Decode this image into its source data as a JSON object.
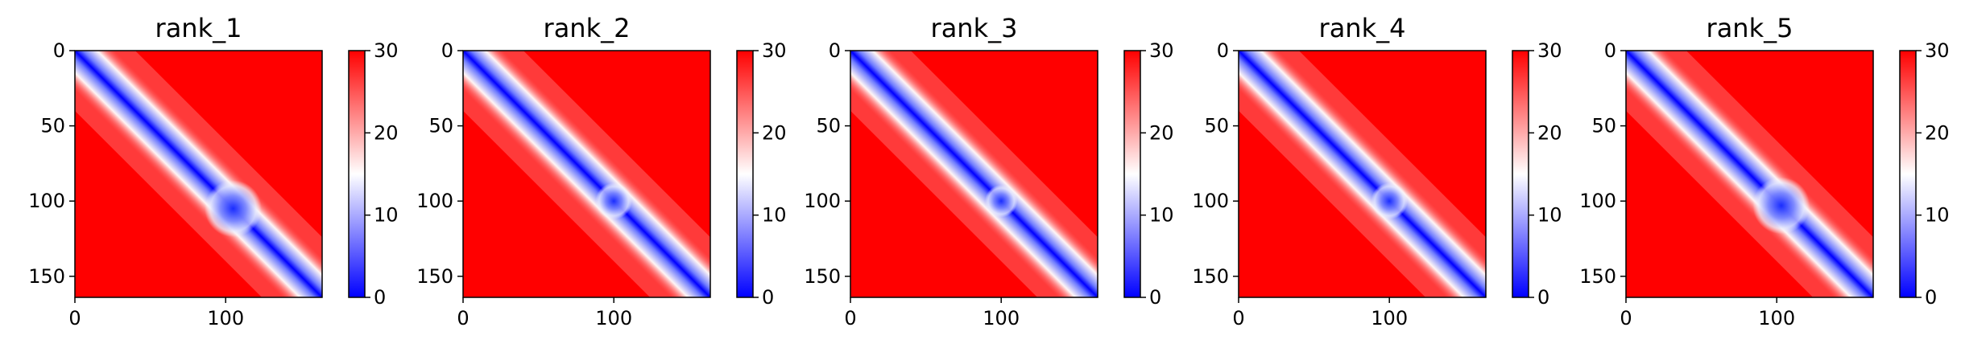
{
  "chart_data": [
    {
      "type": "heatmap",
      "title": "rank_1",
      "x_ticks": [
        0,
        100
      ],
      "y_ticks": [
        0,
        50,
        100,
        150
      ],
      "xlim": [
        0,
        164
      ],
      "ylim": [
        164,
        0
      ],
      "colorbar": {
        "ticks": [
          0,
          10,
          20,
          30
        ],
        "range": [
          0,
          30
        ],
        "colormap": "bwr",
        "colors": [
          "#0000ff",
          "#ffffff",
          "#ff0000"
        ]
      },
      "blob": {
        "center": 105,
        "radius": 14
      }
    },
    {
      "type": "heatmap",
      "title": "rank_2",
      "x_ticks": [
        0,
        100
      ],
      "y_ticks": [
        0,
        50,
        100,
        150
      ],
      "xlim": [
        0,
        164
      ],
      "ylim": [
        164,
        0
      ],
      "colorbar": {
        "ticks": [
          0,
          10,
          20,
          30
        ],
        "range": [
          0,
          30
        ],
        "colormap": "bwr",
        "colors": [
          "#0000ff",
          "#ffffff",
          "#ff0000"
        ]
      },
      "blob": {
        "center": 100,
        "radius": 9
      }
    },
    {
      "type": "heatmap",
      "title": "rank_3",
      "x_ticks": [
        0,
        100
      ],
      "y_ticks": [
        0,
        50,
        100,
        150
      ],
      "xlim": [
        0,
        164
      ],
      "ylim": [
        164,
        0
      ],
      "colorbar": {
        "ticks": [
          0,
          10,
          20,
          30
        ],
        "range": [
          0,
          30
        ],
        "colormap": "bwr",
        "colors": [
          "#0000ff",
          "#ffffff",
          "#ff0000"
        ]
      },
      "blob": {
        "center": 100,
        "radius": 8
      }
    },
    {
      "type": "heatmap",
      "title": "rank_4",
      "x_ticks": [
        0,
        100
      ],
      "y_ticks": [
        0,
        50,
        100,
        150
      ],
      "xlim": [
        0,
        164
      ],
      "ylim": [
        164,
        0
      ],
      "colorbar": {
        "ticks": [
          0,
          10,
          20,
          30
        ],
        "range": [
          0,
          30
        ],
        "colormap": "bwr",
        "colors": [
          "#0000ff",
          "#ffffff",
          "#ff0000"
        ]
      },
      "blob": {
        "center": 100,
        "radius": 9
      }
    },
    {
      "type": "heatmap",
      "title": "rank_5",
      "x_ticks": [
        0,
        100
      ],
      "y_ticks": [
        0,
        50,
        100,
        150
      ],
      "xlim": [
        0,
        164
      ],
      "ylim": [
        164,
        0
      ],
      "colorbar": {
        "ticks": [
          0,
          10,
          20,
          30
        ],
        "range": [
          0,
          30
        ],
        "colormap": "bwr",
        "colors": [
          "#0000ff",
          "#ffffff",
          "#ff0000"
        ]
      },
      "blob": {
        "center": 103,
        "radius": 14
      }
    }
  ]
}
